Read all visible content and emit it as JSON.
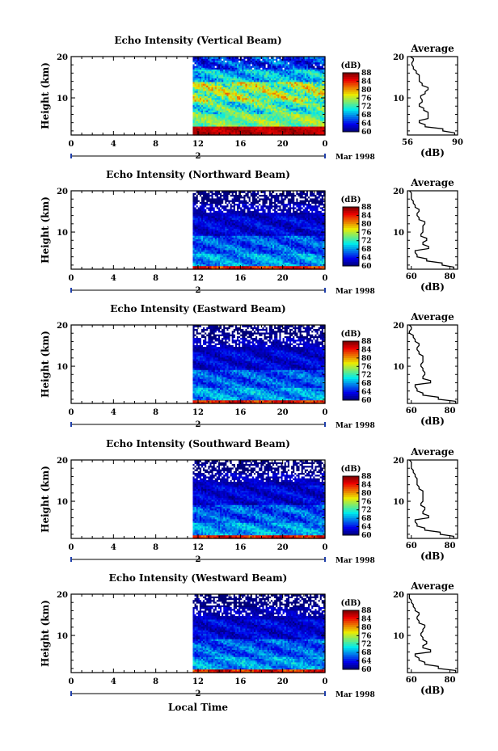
{
  "chart_data": [
    {
      "type": "heatmap",
      "title": "Echo Intensity (Vertical Beam)",
      "ylabel": "Height (km)",
      "xticks": [
        "0",
        "4",
        "8",
        "12",
        "16",
        "20",
        "0"
      ],
      "yticks": [
        "20",
        "10"
      ],
      "xlim": [
        0,
        24
      ],
      "ylim": [
        1,
        20
      ],
      "data_start_hour": 11.5,
      "day_marker": "2",
      "month_label": "Mar 1998",
      "colorbar": {
        "unit": "(dB)",
        "ticks": [
          "88",
          "84",
          "80",
          "76",
          "72",
          "68",
          "64",
          "60"
        ],
        "range": [
          60,
          88
        ]
      },
      "profile_bands": [
        {
          "h": [
            1,
            3
          ],
          "db": [
            84,
            88
          ]
        },
        {
          "h": [
            3,
            6
          ],
          "db": [
            70,
            78
          ]
        },
        {
          "h": [
            6,
            9
          ],
          "db": [
            66,
            78
          ]
        },
        {
          "h": [
            9,
            14
          ],
          "db": [
            68,
            82
          ]
        },
        {
          "h": [
            14,
            17
          ],
          "db": [
            64,
            74
          ]
        },
        {
          "h": [
            17,
            20
          ],
          "db": [
            60,
            70
          ]
        }
      ],
      "average": {
        "title": "Average",
        "xlabel": "(dB)",
        "xticks": [
          "56",
          "90"
        ],
        "yticks": [
          "20",
          "10"
        ],
        "xlim": [
          56,
          90
        ],
        "height": [
          1,
          2,
          3,
          4,
          5,
          6,
          7,
          8,
          9,
          10,
          11,
          12,
          13,
          14,
          15,
          16,
          17,
          18,
          19,
          20
        ],
        "db": [
          88,
          80,
          68,
          64,
          70,
          70,
          67,
          64,
          66,
          65,
          68,
          70,
          66,
          64,
          64,
          62,
          60,
          59,
          60,
          58
        ]
      }
    },
    {
      "type": "heatmap",
      "title": "Echo Intensity (Northward Beam)",
      "ylabel": "Height (km)",
      "xticks": [
        "0",
        "4",
        "8",
        "12",
        "16",
        "20",
        "0"
      ],
      "yticks": [
        "20",
        "10"
      ],
      "xlim": [
        0,
        24
      ],
      "ylim": [
        1,
        20
      ],
      "data_start_hour": 11.5,
      "day_marker": "2",
      "month_label": "Mar 1998",
      "colorbar": {
        "unit": "(dB)",
        "ticks": [
          "88",
          "84",
          "80",
          "76",
          "72",
          "68",
          "64",
          "60"
        ],
        "range": [
          60,
          88
        ]
      },
      "profile_bands": [
        {
          "h": [
            1,
            2
          ],
          "db": [
            80,
            88
          ]
        },
        {
          "h": [
            2,
            5
          ],
          "db": [
            64,
            72
          ]
        },
        {
          "h": [
            5,
            9
          ],
          "db": [
            62,
            70
          ]
        },
        {
          "h": [
            9,
            14
          ],
          "db": [
            60,
            66
          ]
        },
        {
          "h": [
            14,
            17
          ],
          "db": [
            60,
            64
          ]
        },
        {
          "h": [
            17,
            20
          ],
          "db": [
            58,
            62
          ]
        }
      ],
      "average": {
        "title": "Average",
        "xlabel": "(dB)",
        "xticks": [
          "60",
          "80"
        ],
        "yticks": [
          "20",
          "10"
        ],
        "xlim": [
          58,
          84
        ],
        "height": [
          1,
          2,
          3,
          4,
          5,
          6,
          7,
          8,
          9,
          10,
          11,
          12,
          13,
          14,
          15,
          16,
          17,
          18,
          19,
          20
        ],
        "db": [
          82,
          76,
          68,
          63,
          62,
          69,
          66,
          68,
          65,
          66,
          66,
          67,
          64,
          63,
          64,
          62,
          61,
          60,
          60,
          59
        ]
      }
    },
    {
      "type": "heatmap",
      "title": "Echo Intensity (Eastward Beam)",
      "ylabel": "Height (km)",
      "xticks": [
        "0",
        "4",
        "8",
        "12",
        "16",
        "20",
        "0"
      ],
      "yticks": [
        "20",
        "10"
      ],
      "xlim": [
        0,
        24
      ],
      "ylim": [
        1,
        20
      ],
      "data_start_hour": 11.5,
      "day_marker": "2",
      "month_label": "Mar 1998",
      "colorbar": {
        "unit": "(dB)",
        "ticks": [
          "88",
          "84",
          "80",
          "76",
          "72",
          "68",
          "64",
          "60"
        ],
        "range": [
          60,
          88
        ]
      },
      "profile_bands": [
        {
          "h": [
            1,
            2
          ],
          "db": [
            80,
            88
          ]
        },
        {
          "h": [
            2,
            5
          ],
          "db": [
            64,
            72
          ]
        },
        {
          "h": [
            5,
            9
          ],
          "db": [
            62,
            70
          ]
        },
        {
          "h": [
            9,
            14
          ],
          "db": [
            60,
            66
          ]
        },
        {
          "h": [
            14,
            17
          ],
          "db": [
            60,
            64
          ]
        },
        {
          "h": [
            17,
            20
          ],
          "db": [
            58,
            62
          ]
        }
      ],
      "average": {
        "title": "Average",
        "xlabel": "(dB)",
        "xticks": [
          "60",
          "80"
        ],
        "yticks": [
          "20",
          "10"
        ],
        "xlim": [
          58,
          84
        ],
        "height": [
          1,
          2,
          3,
          4,
          5,
          6,
          7,
          8,
          9,
          10,
          11,
          12,
          13,
          14,
          15,
          16,
          17,
          18,
          19,
          20
        ],
        "db": [
          83,
          74,
          66,
          63,
          62,
          70,
          66,
          67,
          66,
          65,
          66,
          66,
          64,
          63,
          64,
          62,
          61,
          59,
          60,
          59
        ]
      }
    },
    {
      "type": "heatmap",
      "title": "Echo Intensity (Southward Beam)",
      "ylabel": "Height (km)",
      "xticks": [
        "0",
        "4",
        "8",
        "12",
        "16",
        "20",
        "0"
      ],
      "yticks": [
        "20",
        "10"
      ],
      "xlim": [
        0,
        24
      ],
      "ylim": [
        1,
        20
      ],
      "data_start_hour": 11.5,
      "day_marker": "2",
      "month_label": "Mar 1998",
      "colorbar": {
        "unit": "(dB)",
        "ticks": [
          "88",
          "84",
          "80",
          "76",
          "72",
          "68",
          "64",
          "60"
        ],
        "range": [
          60,
          88
        ]
      },
      "profile_bands": [
        {
          "h": [
            1,
            2
          ],
          "db": [
            80,
            88
          ]
        },
        {
          "h": [
            2,
            5
          ],
          "db": [
            64,
            72
          ]
        },
        {
          "h": [
            5,
            9
          ],
          "db": [
            62,
            70
          ]
        },
        {
          "h": [
            9,
            14
          ],
          "db": [
            60,
            66
          ]
        },
        {
          "h": [
            14,
            17
          ],
          "db": [
            60,
            64
          ]
        },
        {
          "h": [
            17,
            20
          ],
          "db": [
            58,
            62
          ]
        }
      ],
      "average": {
        "title": "Average",
        "xlabel": "(dB)",
        "xticks": [
          "60",
          "80"
        ],
        "yticks": [
          "20",
          "10"
        ],
        "xlim": [
          58,
          84
        ],
        "height": [
          1,
          2,
          3,
          4,
          5,
          6,
          7,
          8,
          9,
          10,
          11,
          12,
          13,
          14,
          15,
          16,
          17,
          18,
          19,
          20
        ],
        "db": [
          82,
          75,
          67,
          63,
          62,
          69,
          66,
          67,
          65,
          66,
          66,
          66,
          64,
          63,
          63,
          62,
          61,
          60,
          60,
          59
        ]
      }
    },
    {
      "type": "heatmap",
      "title": "Echo Intensity (Westward Beam)",
      "ylabel": "Height (km)",
      "xlabel": "Local Time",
      "xticks": [
        "0",
        "4",
        "8",
        "12",
        "16",
        "20",
        "0"
      ],
      "yticks": [
        "20",
        "10"
      ],
      "xlim": [
        0,
        24
      ],
      "ylim": [
        1,
        20
      ],
      "data_start_hour": 11.5,
      "day_marker": "2",
      "month_label": "Mar 1998",
      "colorbar": {
        "unit": "(dB)",
        "ticks": [
          "88",
          "84",
          "80",
          "76",
          "72",
          "68",
          "64",
          "60"
        ],
        "range": [
          60,
          88
        ]
      },
      "profile_bands": [
        {
          "h": [
            1,
            2
          ],
          "db": [
            80,
            88
          ]
        },
        {
          "h": [
            2,
            5
          ],
          "db": [
            64,
            72
          ]
        },
        {
          "h": [
            5,
            9
          ],
          "db": [
            62,
            70
          ]
        },
        {
          "h": [
            9,
            14
          ],
          "db": [
            60,
            66
          ]
        },
        {
          "h": [
            14,
            17
          ],
          "db": [
            60,
            64
          ]
        },
        {
          "h": [
            17,
            20
          ],
          "db": [
            58,
            62
          ]
        }
      ],
      "average": {
        "title": "Average",
        "xlabel": "(dB)",
        "xticks": [
          "60",
          "80"
        ],
        "yticks": [
          "20",
          "10"
        ],
        "xlim": [
          58,
          84
        ],
        "height": [
          1,
          2,
          3,
          4,
          5,
          6,
          7,
          8,
          9,
          10,
          11,
          12,
          13,
          14,
          15,
          16,
          17,
          18,
          19,
          20
        ],
        "db": [
          83,
          74,
          67,
          64,
          62,
          70,
          66,
          68,
          66,
          65,
          66,
          67,
          64,
          63,
          64,
          62,
          61,
          60,
          59,
          59
        ]
      }
    }
  ]
}
